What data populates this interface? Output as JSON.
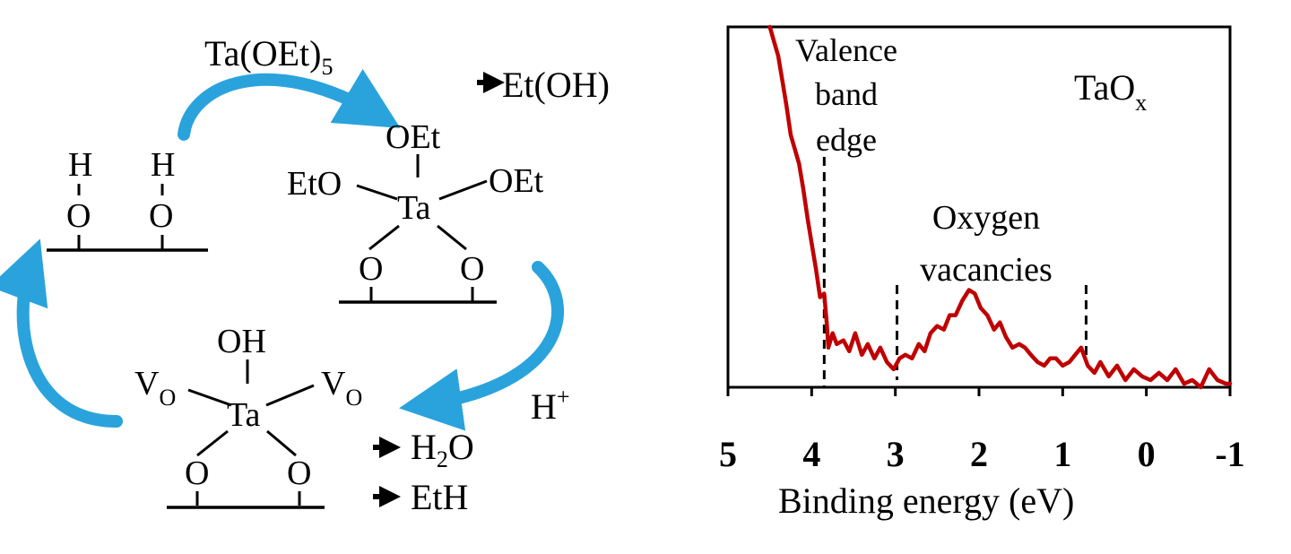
{
  "scheme": {
    "precursor": {
      "text": "Ta(OEt)",
      "sub": "5"
    },
    "byproduct_ethanol": "Et(OH)",
    "hydroxyl_surface": {
      "h1": "H",
      "o1": "O",
      "h2": "H",
      "o2": "O"
    },
    "ta_ethoxide_complex": {
      "top": "OEt",
      "left": "EtO",
      "right": "OEt",
      "center": "Ta",
      "o1": "O",
      "o2": "O"
    },
    "proton": {
      "text": "H",
      "sup": "+"
    },
    "reduced_complex": {
      "top": "OH",
      "left": "V",
      "left_sub": "O",
      "right": "V",
      "right_sub": "O",
      "center": "Ta",
      "o1": "O",
      "o2": "O"
    },
    "byproduct_water": {
      "a": "H",
      "sub": "2",
      "b": "O"
    },
    "byproduct_ethane": "EtH",
    "arrow_color": "#2aa3dc"
  },
  "chart_data": {
    "type": "line",
    "xlabel": "Binding energy (eV)",
    "ylabel": "",
    "x_reversed": true,
    "xlim": [
      5,
      -1
    ],
    "ylim": [
      0,
      1
    ],
    "xticks": [
      "5",
      "4",
      "3",
      "2",
      "1",
      "0",
      "-1"
    ],
    "yticks": [],
    "grid": false,
    "inset_label": {
      "text": "TaO",
      "sub": "x"
    },
    "series": [
      {
        "color": "#c00000",
        "x": [
          4.5,
          4.45,
          4.4,
          4.35,
          4.3,
          4.25,
          4.2,
          4.15,
          4.1,
          4.05,
          4.0,
          3.95,
          3.9,
          3.85,
          3.82,
          3.8,
          3.75,
          3.7,
          3.62,
          3.55,
          3.48,
          3.4,
          3.33,
          3.25,
          3.18,
          3.1,
          3.02,
          2.95,
          2.88,
          2.8,
          2.72,
          2.65,
          2.58,
          2.5,
          2.42,
          2.35,
          2.28,
          2.2,
          2.12,
          2.05,
          1.98,
          1.9,
          1.82,
          1.75,
          1.68,
          1.6,
          1.52,
          1.45,
          1.38,
          1.3,
          1.22,
          1.15,
          1.08,
          1.0,
          0.92,
          0.85,
          0.78,
          0.7,
          0.62,
          0.55,
          0.45,
          0.35,
          0.25,
          0.15,
          0.05,
          -0.05,
          -0.15,
          -0.25,
          -0.35,
          -0.45,
          -0.55,
          -0.65,
          -0.75,
          -0.85,
          -0.95,
          -1.0
        ],
        "y": [
          1.0,
          0.96,
          0.92,
          0.85,
          0.78,
          0.7,
          0.66,
          0.62,
          0.55,
          0.47,
          0.4,
          0.33,
          0.25,
          0.26,
          0.18,
          0.11,
          0.15,
          0.12,
          0.13,
          0.1,
          0.15,
          0.09,
          0.12,
          0.08,
          0.11,
          0.07,
          0.05,
          0.08,
          0.09,
          0.08,
          0.12,
          0.1,
          0.15,
          0.17,
          0.16,
          0.2,
          0.2,
          0.24,
          0.27,
          0.26,
          0.22,
          0.2,
          0.16,
          0.18,
          0.14,
          0.11,
          0.12,
          0.11,
          0.09,
          0.07,
          0.06,
          0.08,
          0.08,
          0.06,
          0.07,
          0.09,
          0.11,
          0.06,
          0.04,
          0.07,
          0.03,
          0.06,
          0.02,
          0.05,
          0.03,
          0.02,
          0.04,
          0.02,
          0.05,
          0.01,
          0.02,
          0.0,
          0.05,
          0.02,
          0.01,
          0.01
        ]
      }
    ],
    "annotations": [
      {
        "lines": [
          "Valence",
          "band",
          "edge"
        ],
        "x": 3.85
      },
      {
        "lines": [
          "Oxygen",
          "vacancies"
        ],
        "x_range": [
          2.98,
          0.72
        ]
      }
    ]
  }
}
